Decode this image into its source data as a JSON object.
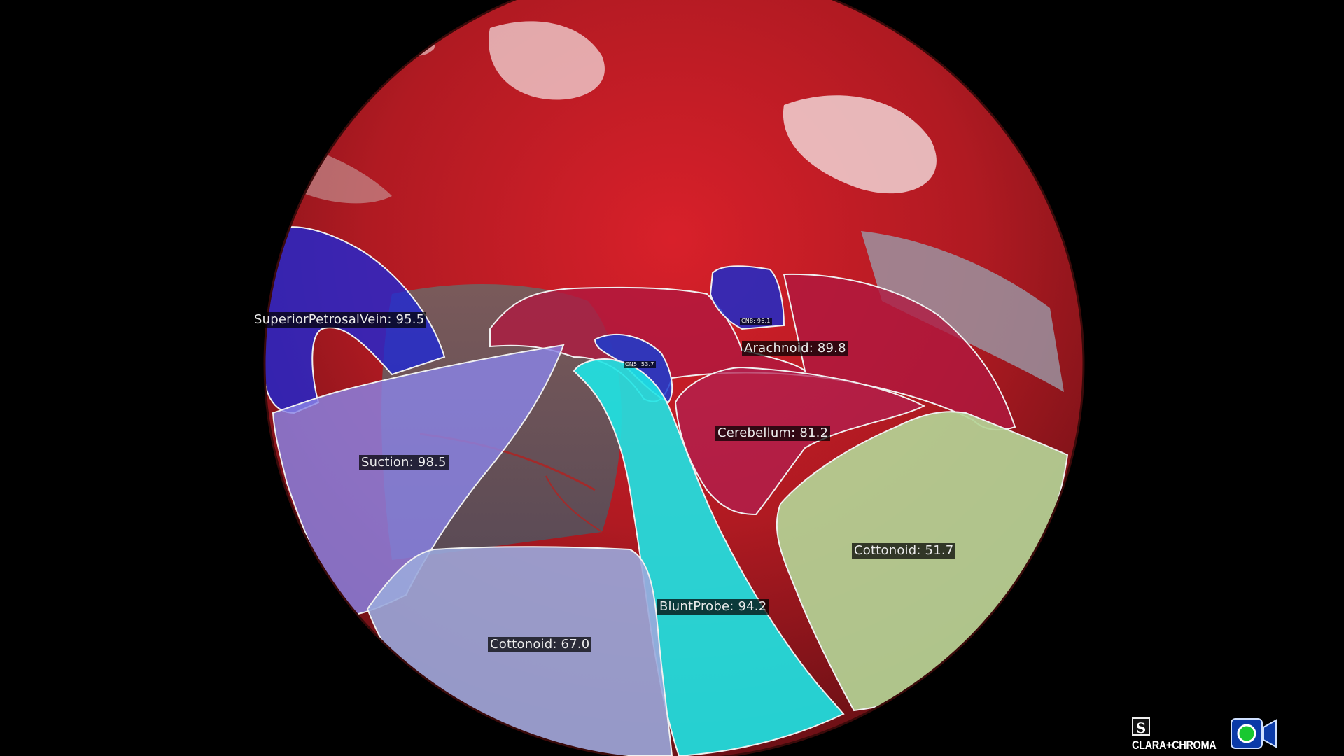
{
  "overlay": {
    "colors": {
      "vein": "#1c28d8",
      "suction": "#8a84e6",
      "arachnoid": "#b01840",
      "cerebellum": "#b22050",
      "blunt_probe": "#1ee6e6",
      "cottonoid_right": "#b4d496",
      "cottonoid_left": "#9aa8dc",
      "cn5": "#1a3cd0",
      "cn8": "#1e2bc8"
    },
    "labels": {
      "superior_petrosal_vein": "SuperiorPetrosalVein: 95.5",
      "arachnoid": "Arachnoid: 89.8",
      "cn8": "CN8: 96.1",
      "cn5": "CN5: 53.7",
      "cerebellum": "Cerebellum: 81.2",
      "suction": "Suction: 98.5",
      "cottonoid_right": "Cottonoid: 51.7",
      "blunt_probe": "BluntProbe: 94.2",
      "cottonoid_left": "Cottonoid: 67.0"
    }
  },
  "watermark": {
    "s_glyph": "S",
    "brand": "CLARA+CHROMA",
    "icon": "video-camera-icon"
  }
}
